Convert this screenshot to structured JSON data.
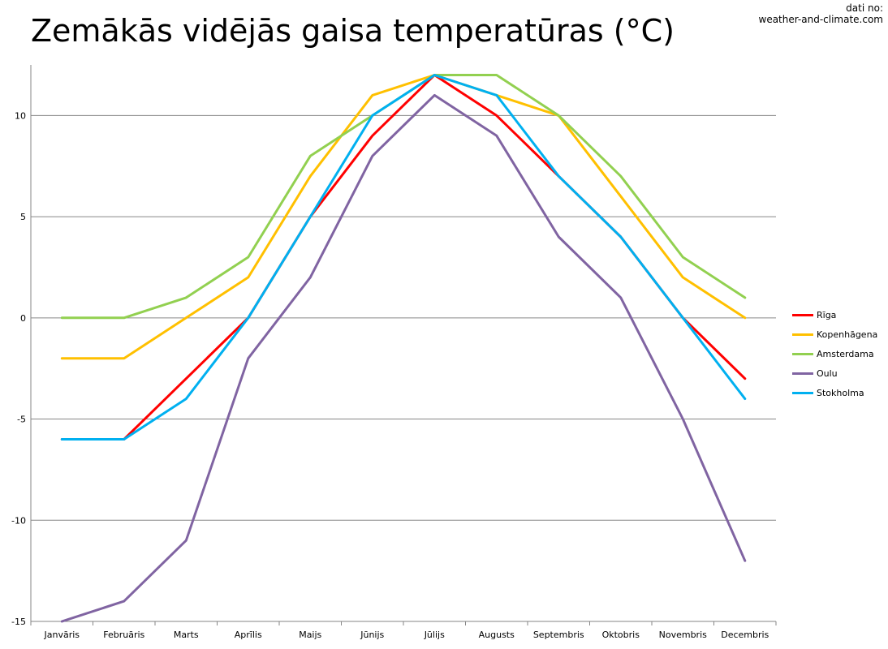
{
  "chart_data": {
    "type": "line",
    "title": "Zemākās vidējās gaisa temperatūras (°C)",
    "source_line1": "dati no:",
    "source_line2": "weather-and-climate.com",
    "categories": [
      "Janvāris",
      "Februāris",
      "Marts",
      "Aprīlis",
      "Maijs",
      "Jūnijs",
      "Jūlijs",
      "Augusts",
      "Septembris",
      "Oktobris",
      "Novembris",
      "Decembris"
    ],
    "ylim": [
      -15,
      12.5
    ],
    "yticks": [
      -15,
      -10,
      -5,
      0,
      5,
      10
    ],
    "grid": true,
    "legend_position": "right",
    "series": [
      {
        "name": "Rīga",
        "color": "#ff0000",
        "values": [
          -6,
          -6,
          -3,
          0,
          5,
          9,
          12,
          10,
          7,
          4,
          0,
          -3
        ]
      },
      {
        "name": "Kopenhāgena",
        "color": "#ffc000",
        "values": [
          -2,
          -2,
          0,
          2,
          7,
          11,
          12,
          11,
          10,
          6,
          2,
          0
        ]
      },
      {
        "name": "Amsterdama",
        "color": "#92d050",
        "values": [
          0,
          0,
          1,
          3,
          8,
          10,
          12,
          12,
          10,
          7,
          3,
          1
        ]
      },
      {
        "name": "Oulu",
        "color": "#8064a2",
        "values": [
          -15,
          -14,
          -11,
          -2,
          2,
          8,
          11,
          9,
          4,
          1,
          -5,
          -12
        ]
      },
      {
        "name": "Stokholma",
        "color": "#00b0f0",
        "values": [
          -6,
          -6,
          -4,
          0,
          5,
          10,
          12,
          11,
          7,
          4,
          0,
          -4
        ]
      }
    ]
  }
}
